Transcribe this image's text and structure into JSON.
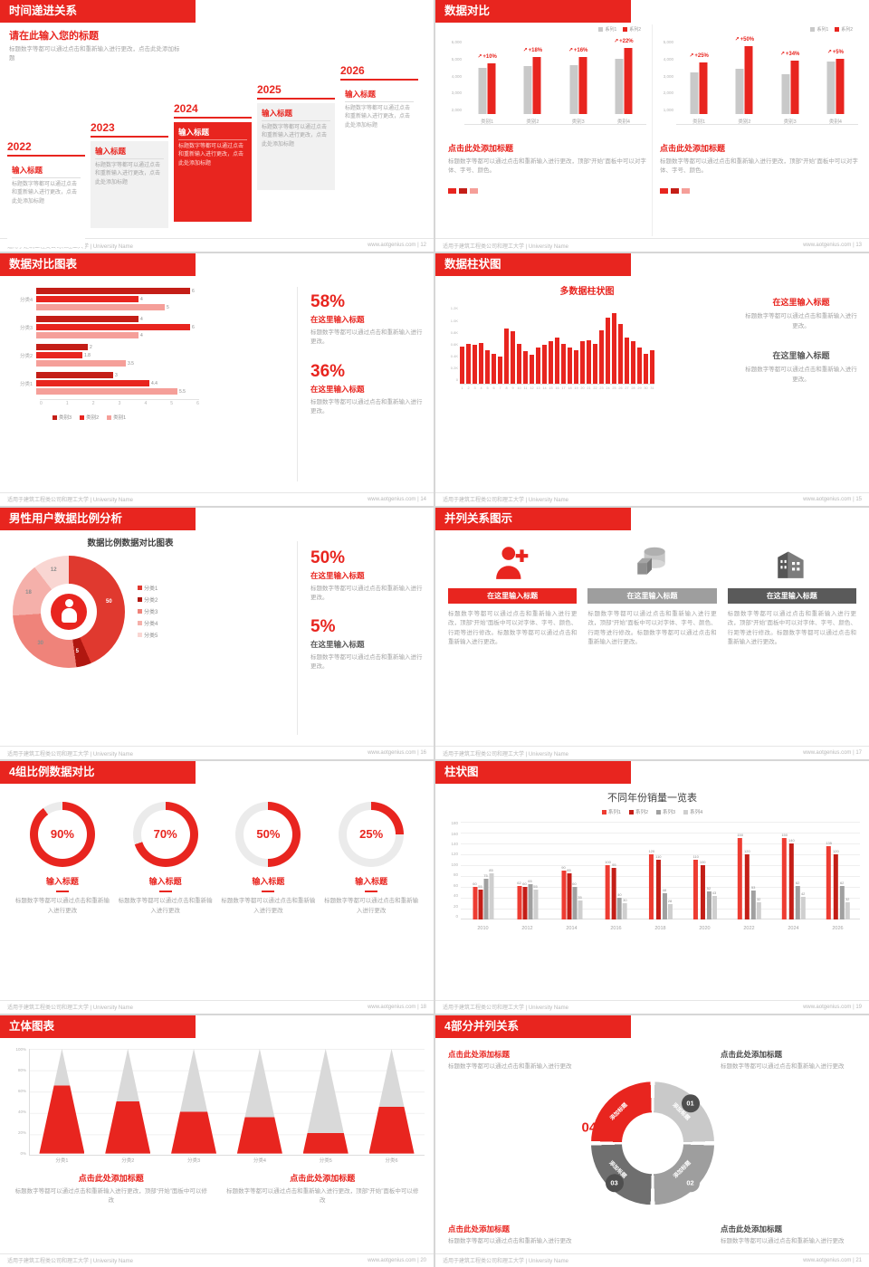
{
  "palette": {
    "red": "#e8251f",
    "dark_red": "#c41e17",
    "light_red": "#f59f99",
    "gray_bar": "#c9c9c9",
    "dark_gray": "#5a5a5a",
    "mid_gray": "#9e9e9e"
  },
  "footer": {
    "org": "适用于建筑工程类公司和理工大学 | University Name",
    "site": "www.aotgenius.com"
  },
  "slides": {
    "s12": {
      "title": "时间递进关系",
      "page": "12",
      "footer_right": "www.aotgenius.com | 12",
      "heading": "请在此输入您的标题",
      "heading_desc": "标题数字等都可以通过点击和重新输入进行更改，点击此处添加标题",
      "item_label": "输入标题",
      "item_desc": "标题数字等都可以通过点击和重新输入进行更改，点击此处添加标题",
      "years": [
        "2022",
        "2023",
        "2024",
        "2025",
        "2026"
      ],
      "highlight_index": 2
    },
    "s13": {
      "title": "数据对比",
      "page": "13",
      "footer_right": "www.aotgenius.com | 13",
      "caption_title": "点击此处添加标题",
      "caption_desc": "标题数字等都可以通过点击和重新输入进行更改，顶部“开始”面板中可以对字体、字号、颜色。"
    },
    "s14": {
      "title": "数据对比图表",
      "page": "14",
      "footer_right": "www.aotgenius.com | 14",
      "stats": [
        {
          "value": "58%",
          "title": "在这里输入标题",
          "desc": "标题数字等都可以通过点击和重新输入进行更改。"
        },
        {
          "value": "36%",
          "title": "在这里输入标题",
          "desc": "标题数字等都可以通过点击和重新输入进行更改。"
        }
      ]
    },
    "s15": {
      "title": "数据柱状图",
      "page": "15",
      "footer_right": "www.aotgenius.com | 15",
      "blocks": [
        {
          "title": "在这里输入标题",
          "desc": "标题数字等都可以通过点击和重新输入进行更改。",
          "accent": "red"
        },
        {
          "title": "在这里输入标题",
          "desc": "标题数字等都可以通过点击和重新输入进行更改。",
          "accent": "dark"
        }
      ]
    },
    "s16": {
      "title": "男性用户数据比例分析",
      "page": "16",
      "footer_right": "www.aotgenius.com | 16",
      "stats": [
        {
          "value": "50%",
          "title": "在这里输入标题",
          "desc": "标题数字等都可以通过点击和重新输入进行更改。"
        },
        {
          "value": "5%",
          "title": "在这里输入标题",
          "desc": "标题数字等都可以通过点击和重新输入进行更改。"
        }
      ]
    },
    "s17": {
      "title": "并列关系图示",
      "page": "17",
      "footer_right": "www.aotgenius.com | 17",
      "columns": [
        {
          "icon": "nurse-icon",
          "header": "在这里输入标题",
          "style": "red",
          "desc": "标题数字等都可以通过点击和重新输入进行更改，顶部“开始”面板中可以对字体、字号、颜色、行距等进行修改。标题数字等都可以通过点击和重新输入进行更改。"
        },
        {
          "icon": "shapes-icon",
          "header": "在这里输入标题",
          "style": "gray",
          "desc": "标题数字等都可以通过点击和重新输入进行更改，顶部“开始”面板中可以对字体、字号、颜色、行距等进行修改。标题数字等都可以通过点击和重新输入进行更改。"
        },
        {
          "icon": "building-icon",
          "header": "在这里输入标题",
          "style": "dark",
          "desc": "标题数字等都可以通过点击和重新输入进行更改，顶部“开始”面板中可以对字体、字号、颜色、行距等进行修改。标题数字等都可以通过点击和重新输入进行更改。"
        }
      ]
    },
    "s18": {
      "title": "4组比例数据对比",
      "page": "18",
      "footer_right": "www.aotgenius.com | 18",
      "item_title": "输入标题",
      "item_desc": "标题数字等都可以通过点击和重新输入进行更改"
    },
    "s19": {
      "title": "柱状图",
      "page": "19",
      "footer_right": "www.aotgenius.com | 19"
    },
    "s20": {
      "title": "立体图表",
      "page": "20",
      "footer_right": "www.aotgenius.com | 20",
      "captions": [
        {
          "title": "点击此处添加标题",
          "desc": "标题数字等都可以通过点击和重新输入进行更改，顶部“开始”面板中可以修改"
        },
        {
          "title": "点击此处添加标题",
          "desc": "标题数字等都可以通过点击和重新输入进行更改，顶部“开始”面板中可以修改"
        }
      ]
    },
    "s21": {
      "title": "4部分并列关系",
      "page": "21",
      "footer_right": "www.aotgenius.com | 21",
      "segment_label": "添加标题",
      "numbers": [
        "01",
        "02",
        "03",
        "04"
      ],
      "blocks": [
        {
          "title": "点击此处添加标题",
          "desc": "标题数字等都可以通过点击和重新输入进行更改",
          "accent": "red"
        },
        {
          "title": "点击此处添加标题",
          "desc": "标题数字等都可以通过点击和重新输入进行更改",
          "accent": "dark"
        },
        {
          "title": "点击此处添加标题",
          "desc": "标题数字等都可以通过点击和重新输入进行更改",
          "accent": "red"
        },
        {
          "title": "点击此处添加标题",
          "desc": "标题数字等都可以通过点击和重新输入进行更改",
          "accent": "dark"
        }
      ]
    }
  },
  "chart_data": [
    {
      "slide": "13",
      "type": "bar",
      "position": "left",
      "categories": [
        "类别1",
        "类别2",
        "类别3",
        "类别4"
      ],
      "series": [
        {
          "name": "系列1",
          "values": [
            4000,
            4200,
            4300,
            4800
          ]
        },
        {
          "name": "系列2",
          "values": [
            4400,
            4950,
            5000,
            5800
          ]
        }
      ],
      "change_labels": [
        "+10%",
        "+18%",
        "+16%",
        "+22%"
      ],
      "y_ticks": [
        "6,000",
        "5,000",
        "4,000",
        "3,000",
        "2,000"
      ],
      "ylim": [
        0,
        6000
      ]
    },
    {
      "slide": "13",
      "type": "bar",
      "position": "right",
      "categories": [
        "类别1",
        "类别2",
        "类别3",
        "类别4"
      ],
      "series": [
        {
          "name": "系列1",
          "values": [
            3000,
            3300,
            2900,
            3800
          ]
        },
        {
          "name": "系列2",
          "values": [
            3750,
            4950,
            3900,
            4000
          ]
        }
      ],
      "change_labels": [
        "+25%",
        "+50%",
        "+34%",
        "+5%"
      ],
      "y_ticks": [
        "5,000",
        "4,000",
        "3,000",
        "2,000",
        "1,000"
      ],
      "ylim": [
        0,
        5000
      ]
    },
    {
      "slide": "14",
      "type": "bar",
      "orientation": "horizontal",
      "categories": [
        "分类4",
        "分类3",
        "分类2",
        "分类1"
      ],
      "series": [
        {
          "name": "类别3",
          "values": [
            6,
            4,
            2,
            3
          ]
        },
        {
          "name": "类别2",
          "values": [
            4,
            6,
            1.8,
            4.4
          ]
        },
        {
          "name": "类别1",
          "values": [
            5,
            4,
            3.5,
            5.5
          ]
        }
      ],
      "x_ticks": [
        "0",
        "1",
        "2",
        "3",
        "4",
        "5",
        "6"
      ],
      "xlim": [
        0,
        6
      ]
    },
    {
      "slide": "15",
      "type": "bar",
      "title": "多数据柱状图",
      "x_labels": [
        "1",
        "2",
        "3",
        "4",
        "5",
        "6",
        "7",
        "8",
        "9",
        "10",
        "11",
        "12",
        "13",
        "14",
        "15",
        "16",
        "17",
        "18",
        "19",
        "20",
        "21",
        "22",
        "23",
        "24",
        "25",
        "26",
        "27",
        "28",
        "29",
        "30",
        "31"
      ],
      "values": [
        620,
        660,
        640,
        680,
        560,
        500,
        460,
        900,
        870,
        660,
        540,
        480,
        600,
        650,
        700,
        760,
        660,
        600,
        560,
        700,
        720,
        660,
        880,
        1080,
        1150,
        980,
        760,
        700,
        600,
        500,
        560
      ],
      "y_ticks": [
        "1.2K",
        "1.0K",
        "0.8K",
        "0.6K",
        "0.4K",
        "0.2K",
        "0"
      ],
      "ylim": [
        0,
        1200
      ]
    },
    {
      "slide": "16",
      "type": "pie",
      "title": "数据比例数据对比图表",
      "labels": [
        "分类1",
        "分类2",
        "分类3",
        "分类4",
        "分类5"
      ],
      "values": [
        50,
        5,
        30,
        18,
        12
      ],
      "colors": [
        "#e0392f",
        "#b01710",
        "#ef837a",
        "#f5b0aa",
        "#f9d6d2"
      ]
    },
    {
      "slide": "18",
      "type": "pie",
      "variant": "progress-rings",
      "values": [
        90,
        70,
        50,
        25
      ]
    },
    {
      "slide": "19",
      "type": "bar",
      "title": "不同年份销量一览表",
      "categories": [
        "2010",
        "2012",
        "2014",
        "2016",
        "2018",
        "2020",
        "2022",
        "2024",
        "2026"
      ],
      "series": [
        {
          "name": "系列1",
          "values": [
            60,
            62,
            90,
            100,
            120,
            110,
            150,
            150,
            135
          ]
        },
        {
          "name": "系列2",
          "values": [
            55,
            60,
            85,
            95,
            110,
            100,
            120,
            140,
            120
          ]
        },
        {
          "name": "系列3",
          "values": [
            75,
            65,
            60,
            40,
            48,
            52,
            53,
            62,
            62
          ]
        },
        {
          "name": "系列4",
          "values": [
            85,
            55,
            35,
            30,
            28,
            43,
            32,
            42,
            32
          ]
        }
      ],
      "colors": [
        "#ee3c32",
        "#c41e17",
        "#a0a0a0",
        "#cfcfcf"
      ],
      "y_ticks": [
        "180",
        "160",
        "140",
        "120",
        "100",
        "80",
        "60",
        "40",
        "20",
        "0"
      ],
      "ylim": [
        0,
        180
      ]
    },
    {
      "slide": "20",
      "type": "bar",
      "variant": "cone-3d",
      "categories": [
        "分类1",
        "分类2",
        "分类3",
        "分类4",
        "分类5",
        "分类6"
      ],
      "red_percent": [
        65,
        50,
        40,
        35,
        20,
        45
      ],
      "y_ticks": [
        "100%",
        "80%",
        "60%",
        "40%",
        "20%",
        "0%"
      ]
    }
  ]
}
